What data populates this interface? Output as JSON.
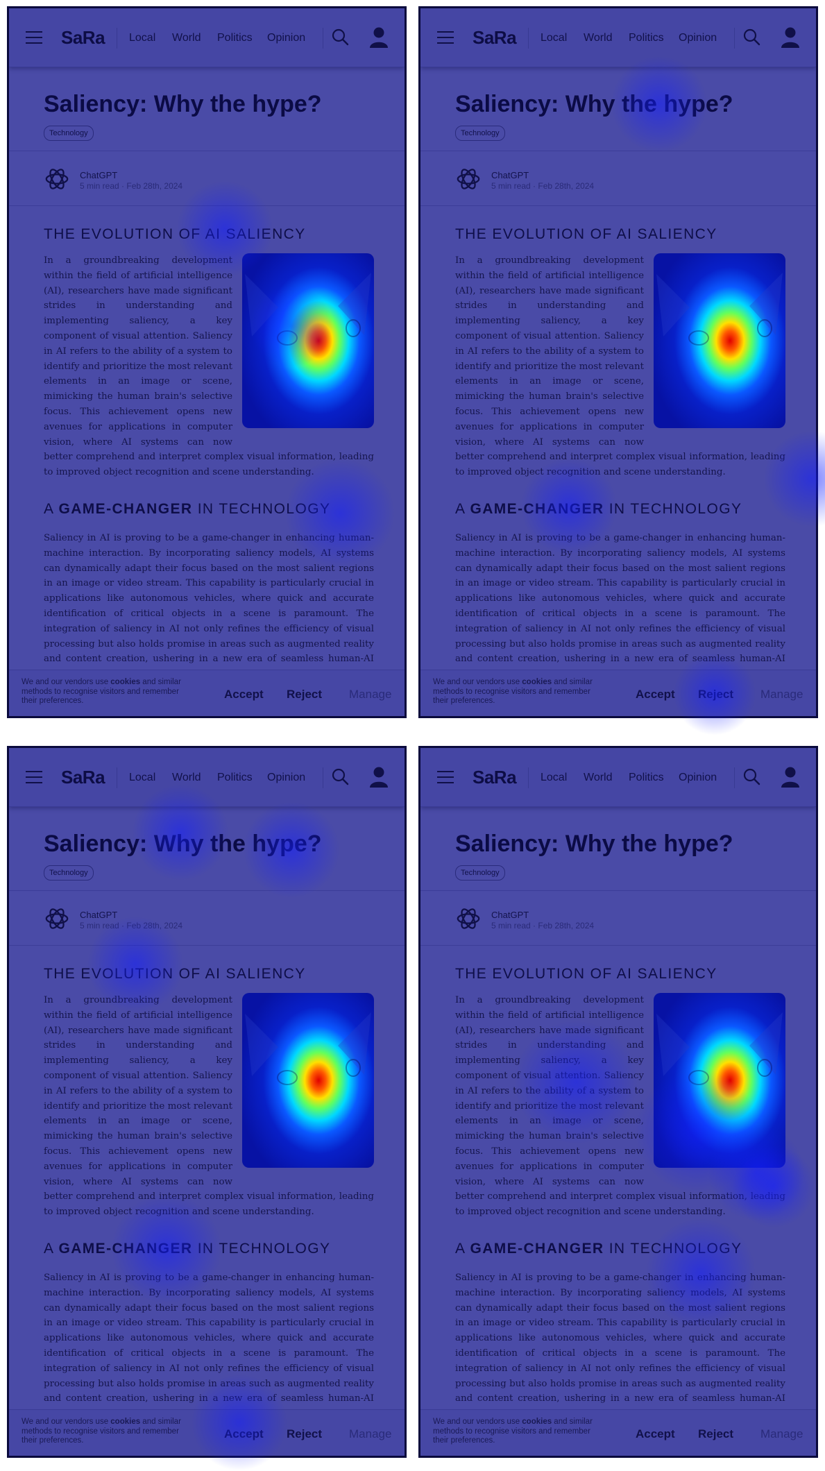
{
  "nav": {
    "logo": "SaRa",
    "links": [
      "Local",
      "World",
      "Politics",
      "Opinion"
    ]
  },
  "article": {
    "title": "Saliency: Why the hype?",
    "tag": "Technology",
    "author": "ChatGPT",
    "meta": "5 min read · Feb 28th, 2024",
    "section1_heading": "THE EVOLUTION OF AI SALIENCY",
    "section1_text": "In a groundbreaking development within the field of artificial intelligence (AI), researchers have made significant strides in understanding and implementing saliency, a key component of visual attention. Saliency in AI refers to the ability of a system to identify and prioritize the most relevant elements in an image or scene, mimicking the human brain's selective focus. This achievement opens new avenues for applications in computer vision, where AI systems can now better comprehend and interpret complex visual information, leading to improved object recognition and scene understanding.",
    "section2_heading_pre": "A ",
    "section2_heading_bold": "GAME-CHANGER",
    "section2_heading_post": " IN TECHNOLOGY",
    "section2_text": "Saliency in AI is proving to be a game-changer in enhancing human-machine interaction. By incorporating saliency models, AI systems can dynamically adapt their focus based on the most salient regions in an image or video stream. This capability is particularly crucial in applications like autonomous vehicles, where quick and accurate identification of critical objects in a scene is paramount. The integration of saliency in AI not only refines the efficiency of visual processing but also holds promise in areas such as augmented reality and content creation, ushering in a new era of seamless human-AI collaboration."
  },
  "cookie": {
    "text_pre": "We and our vendors use ",
    "text_bold": "cookies",
    "text_post": " and similar methods to recognise visitors and remember their preferences.",
    "accept": "Accept",
    "reject": "Reject",
    "manage": "Manage"
  },
  "colors": {
    "overlay": "#4a4ba7",
    "text": "#101048",
    "border": "#0a0a3c"
  }
}
